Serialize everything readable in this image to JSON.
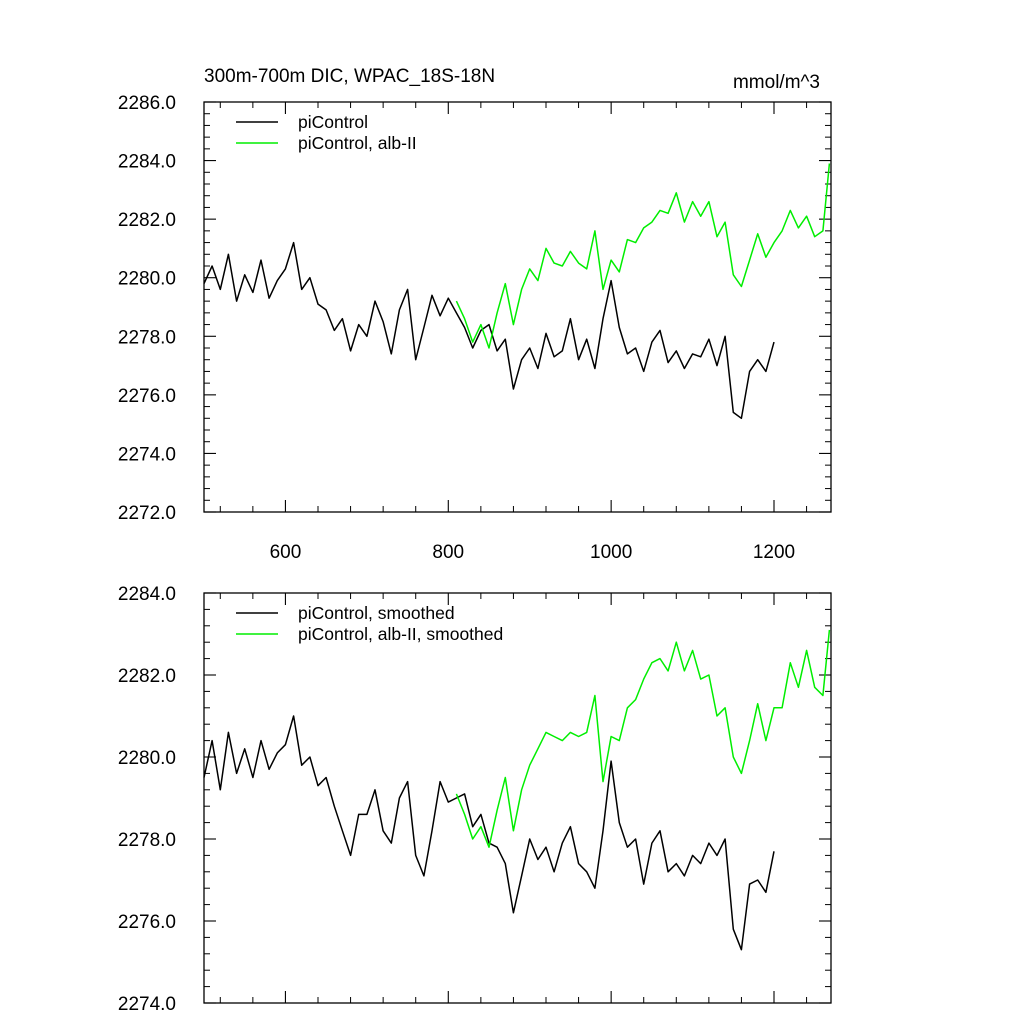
{
  "chart_data": [
    {
      "type": "line",
      "title": "300m-700m DIC, WPAC_18S-18N",
      "units": "mmol/m^3",
      "xlim": [
        500,
        1270
      ],
      "ylim": [
        2272,
        2286
      ],
      "xticks": [
        600,
        800,
        1000,
        1200
      ],
      "xtick_labels": [
        "600",
        "800",
        "1000",
        "1200"
      ],
      "yticks": [
        2272,
        2274,
        2276,
        2278,
        2280,
        2282,
        2284,
        2286
      ],
      "ytick_labels": [
        "2272.0",
        "2274.0",
        "2276.0",
        "2278.0",
        "2280.0",
        "2282.0",
        "2284.0",
        "2286.0"
      ],
      "legend_position": "top-left",
      "series": [
        {
          "name": "piControl",
          "color": "#000000",
          "x": [
            500,
            510,
            520,
            530,
            540,
            550,
            560,
            570,
            580,
            590,
            600,
            610,
            620,
            630,
            640,
            650,
            660,
            670,
            680,
            690,
            700,
            710,
            720,
            730,
            740,
            750,
            760,
            770,
            780,
            790,
            800,
            810,
            820,
            830,
            840,
            850,
            860,
            870,
            880,
            890,
            900,
            910,
            920,
            930,
            940,
            950,
            960,
            970,
            980,
            990,
            1000,
            1010,
            1020,
            1030,
            1040,
            1050,
            1060,
            1070,
            1080,
            1090,
            1100,
            1110,
            1120,
            1130,
            1140,
            1150,
            1160,
            1170,
            1180,
            1190,
            1200
          ],
          "values": [
            2279.8,
            2280.4,
            2279.6,
            2280.8,
            2279.2,
            2280.1,
            2279.5,
            2280.6,
            2279.3,
            2279.9,
            2280.3,
            2281.2,
            2279.6,
            2280.0,
            2279.1,
            2278.9,
            2278.2,
            2278.6,
            2277.5,
            2278.4,
            2278.0,
            2279.2,
            2278.5,
            2277.4,
            2278.9,
            2279.6,
            2277.2,
            2278.3,
            2279.4,
            2278.7,
            2279.3,
            2278.8,
            2278.3,
            2277.6,
            2278.2,
            2278.4,
            2277.5,
            2277.9,
            2276.2,
            2277.2,
            2277.6,
            2276.9,
            2278.1,
            2277.3,
            2277.5,
            2278.6,
            2277.2,
            2277.9,
            2276.9,
            2278.6,
            2279.9,
            2278.3,
            2277.4,
            2277.6,
            2276.8,
            2277.8,
            2278.2,
            2277.1,
            2277.5,
            2276.9,
            2277.4,
            2277.3,
            2277.9,
            2277.0,
            2278.0,
            2275.4,
            2275.2,
            2276.8,
            2277.2,
            2276.8,
            2277.8
          ]
        },
        {
          "name": "piControl, alb-II",
          "color": "#00ee00",
          "x": [
            810,
            820,
            830,
            840,
            850,
            860,
            870,
            880,
            890,
            900,
            910,
            920,
            930,
            940,
            950,
            960,
            970,
            980,
            990,
            1000,
            1010,
            1020,
            1030,
            1040,
            1050,
            1060,
            1070,
            1080,
            1090,
            1100,
            1110,
            1120,
            1130,
            1140,
            1150,
            1160,
            1170,
            1180,
            1190,
            1200,
            1210,
            1220,
            1230,
            1240,
            1250,
            1260,
            1268
          ],
          "values": [
            2279.2,
            2278.6,
            2277.8,
            2278.4,
            2277.6,
            2278.8,
            2279.8,
            2278.4,
            2279.6,
            2280.3,
            2279.9,
            2281.0,
            2280.5,
            2280.4,
            2280.9,
            2280.5,
            2280.3,
            2281.6,
            2279.6,
            2280.6,
            2280.2,
            2281.3,
            2281.2,
            2281.7,
            2281.9,
            2282.3,
            2282.2,
            2282.9,
            2281.9,
            2282.6,
            2282.1,
            2282.6,
            2281.4,
            2281.9,
            2280.1,
            2279.7,
            2280.6,
            2281.5,
            2280.7,
            2281.2,
            2281.6,
            2282.3,
            2281.7,
            2282.1,
            2281.4,
            2281.6,
            2283.9
          ]
        }
      ]
    },
    {
      "type": "line",
      "title": "",
      "xlim": [
        500,
        1270
      ],
      "ylim": [
        2274,
        2284
      ],
      "xticks": [
        600,
        800,
        1000,
        1200
      ],
      "xtick_labels": [],
      "yticks": [
        2274,
        2276,
        2278,
        2280,
        2282,
        2284
      ],
      "ytick_labels": [
        "2274.0",
        "2276.0",
        "2278.0",
        "2280.0",
        "2282.0",
        "2284.0"
      ],
      "legend_position": "top-left",
      "series": [
        {
          "name": "piControl, smoothed",
          "color": "#000000",
          "x": [
            500,
            510,
            520,
            530,
            540,
            550,
            560,
            570,
            580,
            590,
            600,
            610,
            620,
            630,
            640,
            650,
            660,
            670,
            680,
            690,
            700,
            710,
            720,
            730,
            740,
            750,
            760,
            770,
            780,
            790,
            800,
            810,
            820,
            830,
            840,
            850,
            860,
            870,
            880,
            890,
            900,
            910,
            920,
            930,
            940,
            950,
            960,
            970,
            980,
            990,
            1000,
            1010,
            1020,
            1030,
            1040,
            1050,
            1060,
            1070,
            1080,
            1090,
            1100,
            1110,
            1120,
            1130,
            1140,
            1150,
            1160,
            1170,
            1180,
            1190,
            1200
          ],
          "values": [
            2279.5,
            2280.4,
            2279.2,
            2280.6,
            2279.6,
            2280.2,
            2279.5,
            2280.4,
            2279.7,
            2280.1,
            2280.3,
            2281.0,
            2279.8,
            2280.0,
            2279.3,
            2279.5,
            2278.8,
            2278.2,
            2277.6,
            2278.6,
            2278.6,
            2279.2,
            2278.2,
            2277.9,
            2279.0,
            2279.4,
            2277.6,
            2277.1,
            2278.2,
            2279.4,
            2278.9,
            2279.0,
            2279.1,
            2278.3,
            2278.6,
            2277.9,
            2277.8,
            2277.4,
            2276.2,
            2277.1,
            2278.0,
            2277.5,
            2277.8,
            2277.2,
            2277.9,
            2278.3,
            2277.4,
            2277.2,
            2276.8,
            2278.2,
            2279.9,
            2278.4,
            2277.8,
            2278.0,
            2276.9,
            2277.9,
            2278.2,
            2277.2,
            2277.4,
            2277.1,
            2277.6,
            2277.4,
            2277.9,
            2277.6,
            2278.0,
            2275.8,
            2275.3,
            2276.9,
            2277.0,
            2276.7,
            2277.7
          ]
        },
        {
          "name": "piControl, alb-II, smoothed",
          "color": "#00ee00",
          "x": [
            810,
            820,
            830,
            840,
            850,
            860,
            870,
            880,
            890,
            900,
            910,
            920,
            930,
            940,
            950,
            960,
            970,
            980,
            990,
            1000,
            1010,
            1020,
            1030,
            1040,
            1050,
            1060,
            1070,
            1080,
            1090,
            1100,
            1110,
            1120,
            1130,
            1140,
            1150,
            1160,
            1170,
            1180,
            1190,
            1200,
            1210,
            1220,
            1230,
            1240,
            1250,
            1260,
            1268
          ],
          "values": [
            2279.1,
            2278.6,
            2278.0,
            2278.3,
            2277.8,
            2278.7,
            2279.5,
            2278.2,
            2279.2,
            2279.8,
            2280.2,
            2280.6,
            2280.5,
            2280.4,
            2280.6,
            2280.5,
            2280.6,
            2281.5,
            2279.4,
            2280.5,
            2280.4,
            2281.2,
            2281.4,
            2281.9,
            2282.3,
            2282.4,
            2282.1,
            2282.8,
            2282.1,
            2282.6,
            2281.9,
            2282.0,
            2281.0,
            2281.2,
            2280.0,
            2279.6,
            2280.4,
            2281.3,
            2280.4,
            2281.2,
            2281.2,
            2282.3,
            2281.7,
            2282.6,
            2281.7,
            2281.5,
            2283.1
          ]
        }
      ]
    }
  ]
}
